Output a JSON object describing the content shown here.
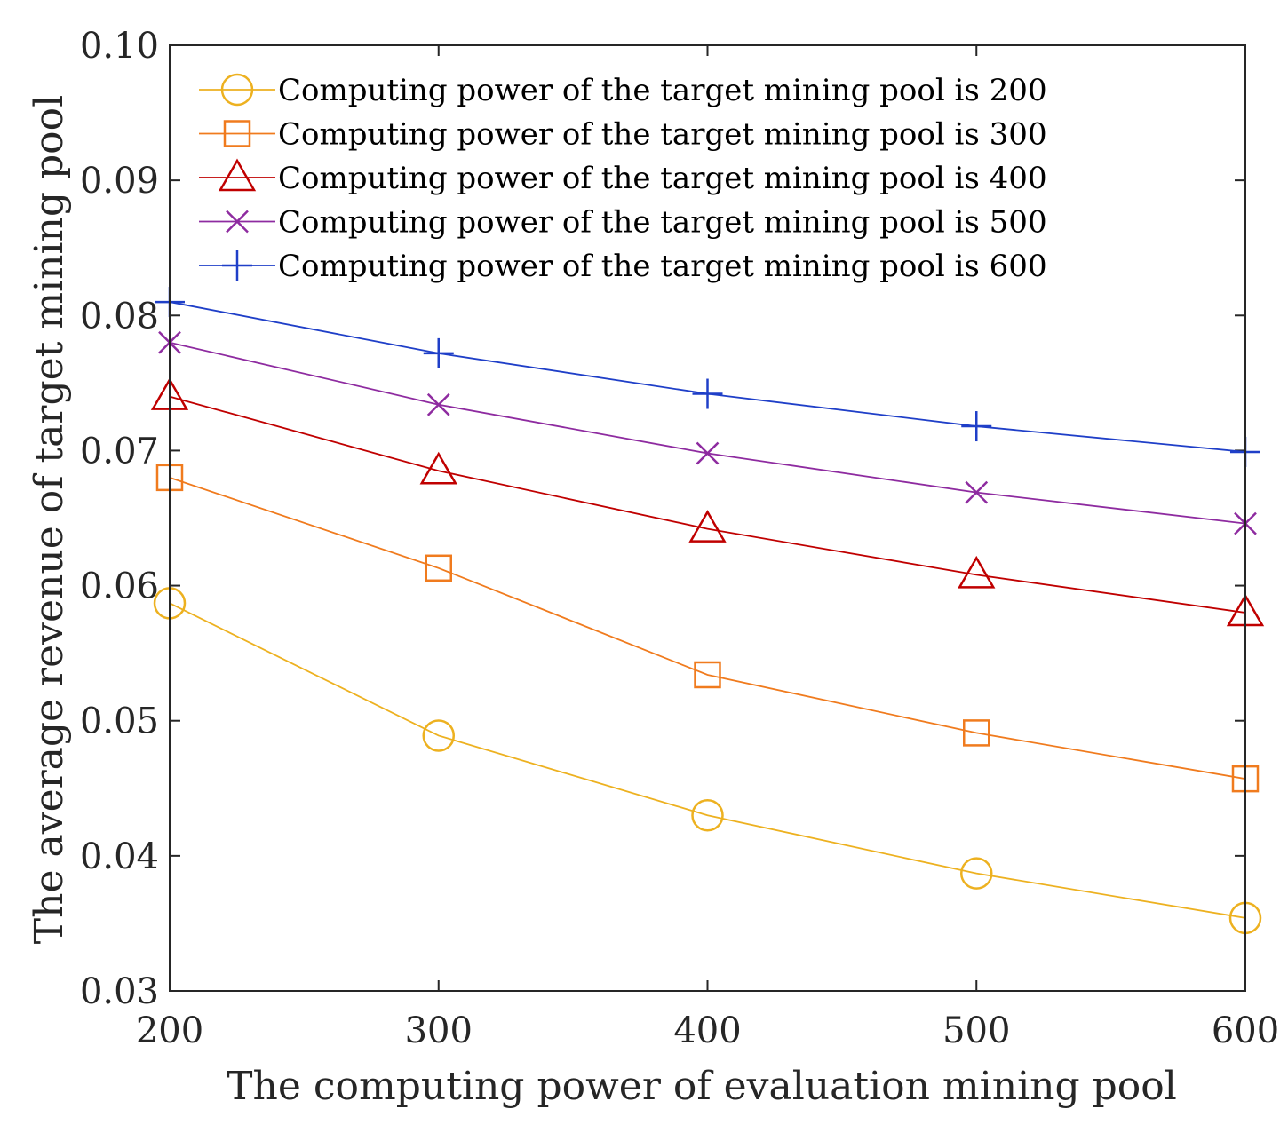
{
  "chart_data": {
    "type": "line",
    "title": "",
    "xlabel": "The computing power of evaluation mining pool",
    "ylabel": "The average revenue of target mining pool",
    "x": [
      200,
      300,
      400,
      500,
      600
    ],
    "xlim": [
      200,
      600
    ],
    "ylim": [
      0.03,
      0.1
    ],
    "xticks": [
      "200",
      "300",
      "400",
      "500",
      "600"
    ],
    "yticks": [
      "0.03",
      "0.04",
      "0.05",
      "0.06",
      "0.07",
      "0.08",
      "0.09",
      "0.10"
    ],
    "grid": false,
    "legend_position": "top-left",
    "series": [
      {
        "name": "Computing power of the target mining pool is 200",
        "marker": "circle",
        "color": "#EDB120",
        "values": [
          0.0587,
          0.0489,
          0.043,
          0.0387,
          0.0354
        ]
      },
      {
        "name": "Computing power of the target mining pool is 300",
        "marker": "square",
        "color": "#F07B1E",
        "values": [
          0.068,
          0.0613,
          0.0534,
          0.0491,
          0.0457
        ]
      },
      {
        "name": "Computing power of the target mining pool is 400",
        "marker": "triangle",
        "color": "#C00000",
        "values": [
          0.074,
          0.0685,
          0.0642,
          0.0608,
          0.058
        ]
      },
      {
        "name": "Computing power of the target mining pool is 500",
        "marker": "x",
        "color": "#8E2BA0",
        "values": [
          0.078,
          0.0734,
          0.0698,
          0.0669,
          0.0646
        ]
      },
      {
        "name": "Computing power of the target mining pool is 600",
        "marker": "plus",
        "color": "#1F3FC8",
        "values": [
          0.081,
          0.0772,
          0.0742,
          0.0718,
          0.0699
        ]
      }
    ]
  }
}
